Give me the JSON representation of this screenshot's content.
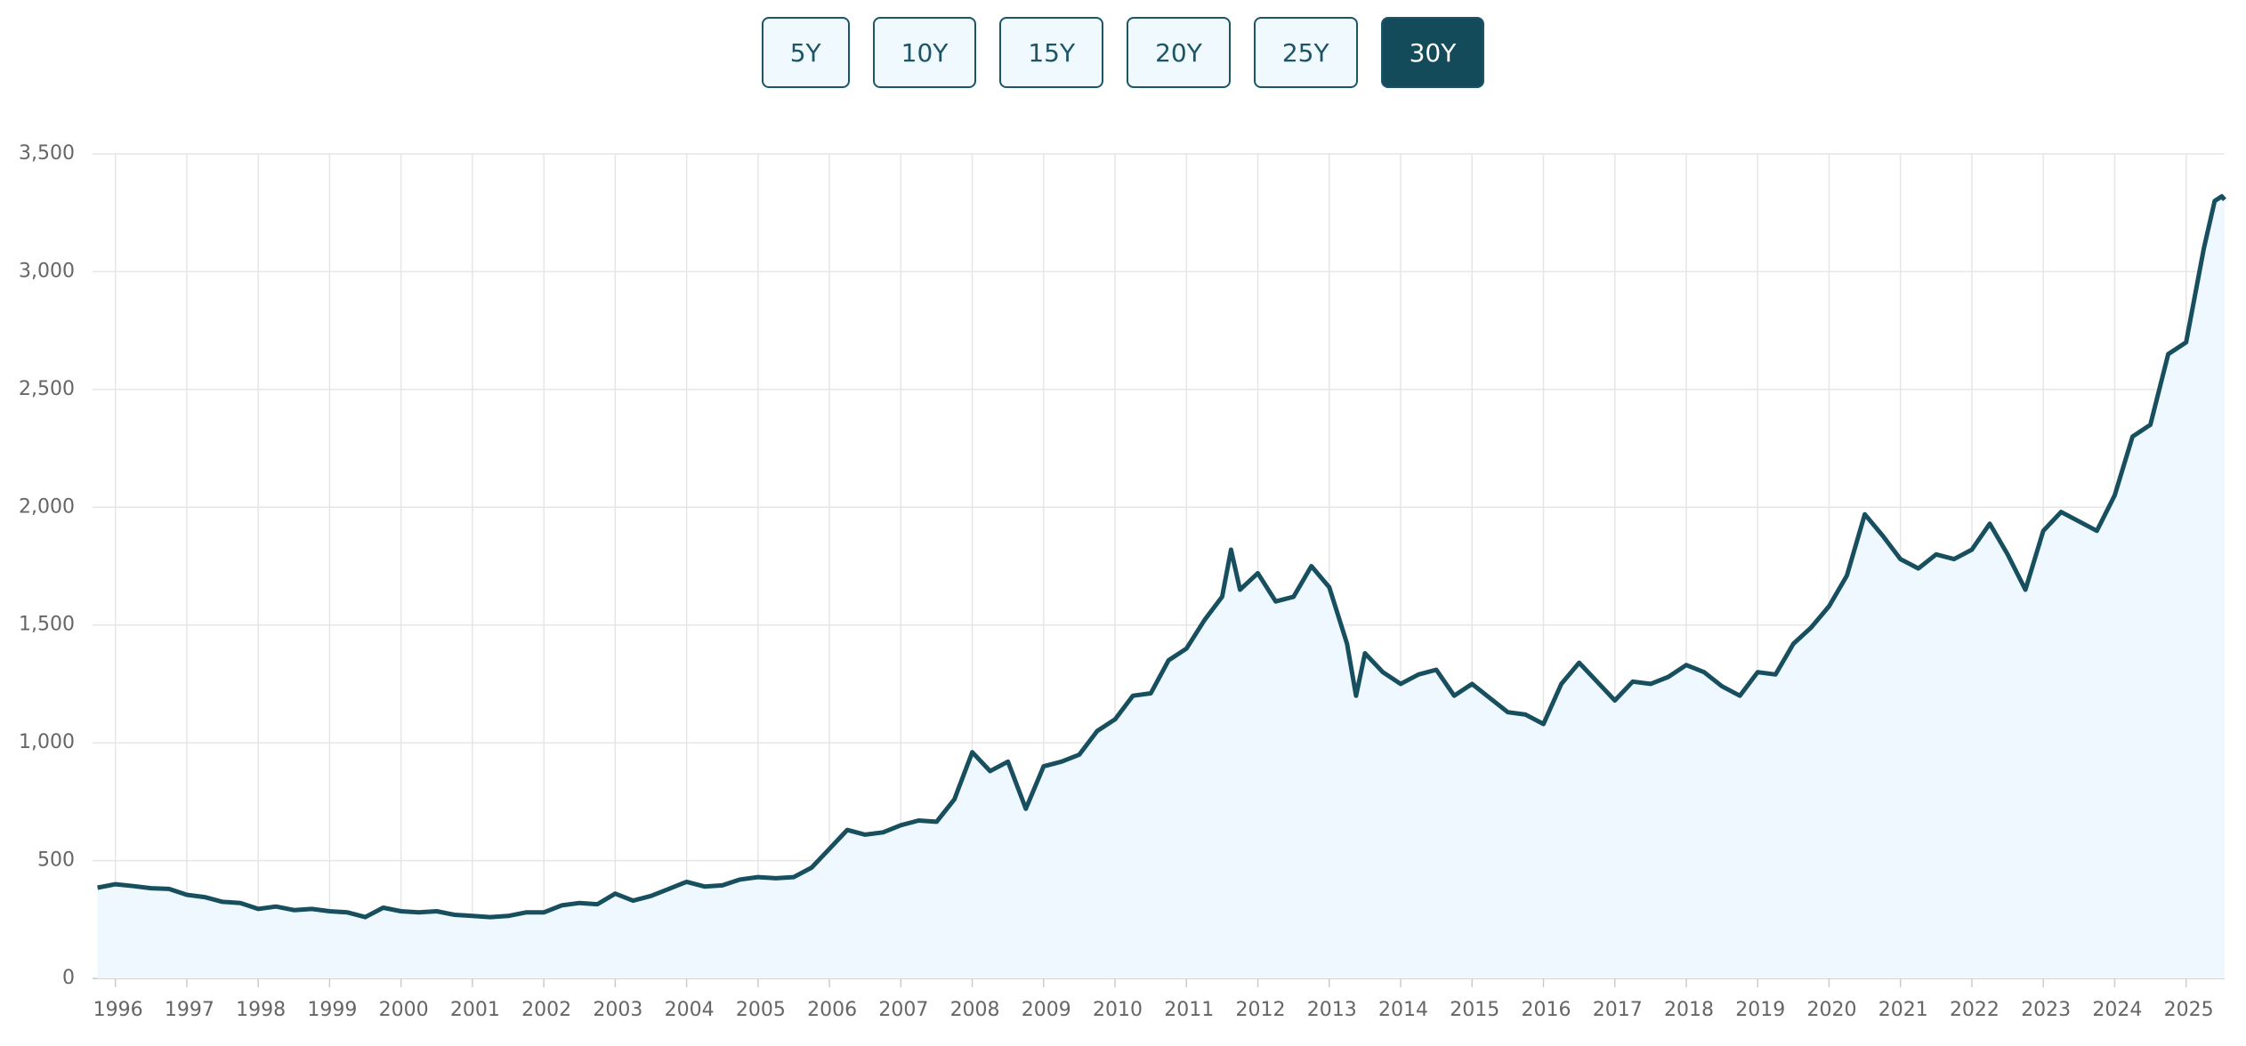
{
  "range_buttons": [
    "5Y",
    "10Y",
    "15Y",
    "20Y",
    "25Y",
    "30Y"
  ],
  "selected_range": "30Y",
  "chart_data": {
    "type": "area",
    "color": "#174f5f",
    "fill": "#eef8fe",
    "grid": true,
    "xlim": [
      1995.68,
      2025.54
    ],
    "xticks": [
      1996,
      1997,
      1998,
      1999,
      2000,
      2001,
      2002,
      2003,
      2004,
      2005,
      2006,
      2007,
      2008,
      2009,
      2010,
      2011,
      2012,
      2013,
      2014,
      2015,
      2016,
      2017,
      2018,
      2019,
      2020,
      2021,
      2022,
      2023,
      2024,
      2025
    ],
    "ylim": [
      0,
      3500
    ],
    "yticks": [
      0,
      500,
      {
        "value": 1000,
        "label": "1,000"
      },
      {
        "value": 1500,
        "label": "1,500"
      },
      {
        "value": 2000,
        "label": "2,000"
      },
      {
        "value": 2500,
        "label": "2,500"
      },
      {
        "value": 3000,
        "label": "3,000"
      },
      {
        "value": 3500,
        "label": "3,500"
      }
    ],
    "x": [
      1995.75,
      1996,
      1996.25,
      1996.5,
      1996.75,
      1997,
      1997.25,
      1997.5,
      1997.75,
      1998,
      1998.25,
      1998.5,
      1998.75,
      1999,
      1999.25,
      1999.5,
      1999.75,
      2000,
      2000.25,
      2000.5,
      2000.75,
      2001,
      2001.25,
      2001.5,
      2001.75,
      2002,
      2002.25,
      2002.5,
      2002.75,
      2003,
      2003.25,
      2003.5,
      2003.75,
      2004,
      2004.25,
      2004.5,
      2004.75,
      2005,
      2005.25,
      2005.5,
      2005.75,
      2006,
      2006.25,
      2006.5,
      2006.75,
      2007,
      2007.25,
      2007.5,
      2007.75,
      2008,
      2008.25,
      2008.5,
      2008.75,
      2009,
      2009.25,
      2009.5,
      2009.75,
      2010,
      2010.25,
      2010.5,
      2010.75,
      2011,
      2011.25,
      2011.5,
      2011.625,
      2011.75,
      2012,
      2012.25,
      2012.5,
      2012.75,
      2013,
      2013.25,
      2013.375,
      2013.5,
      2013.75,
      2014,
      2014.25,
      2014.5,
      2014.75,
      2015,
      2015.25,
      2015.5,
      2015.75,
      2016,
      2016.25,
      2016.5,
      2016.75,
      2017,
      2017.25,
      2017.5,
      2017.75,
      2018,
      2018.25,
      2018.5,
      2018.75,
      2019,
      2019.25,
      2019.5,
      2019.75,
      2020,
      2020.25,
      2020.5,
      2020.75,
      2021,
      2021.25,
      2021.5,
      2021.75,
      2022,
      2022.25,
      2022.5,
      2022.75,
      2023,
      2023.25,
      2023.5,
      2023.75,
      2024,
      2024.25,
      2024.5,
      2024.75,
      2025,
      2025.25,
      2025.4,
      2025.5,
      2025.54
    ],
    "values": [
      385,
      400,
      392,
      383,
      380,
      355,
      345,
      325,
      320,
      295,
      305,
      290,
      295,
      285,
      280,
      260,
      300,
      285,
      280,
      285,
      270,
      265,
      260,
      265,
      280,
      280,
      310,
      320,
      315,
      360,
      330,
      350,
      380,
      410,
      390,
      395,
      420,
      430,
      425,
      430,
      470,
      550,
      630,
      610,
      620,
      650,
      670,
      665,
      760,
      960,
      880,
      920,
      720,
      900,
      920,
      950,
      1050,
      1100,
      1200,
      1210,
      1350,
      1400,
      1520,
      1620,
      1820,
      1650,
      1720,
      1600,
      1620,
      1750,
      1660,
      1420,
      1200,
      1380,
      1300,
      1250,
      1290,
      1310,
      1200,
      1250,
      1190,
      1130,
      1120,
      1080,
      1250,
      1340,
      1260,
      1180,
      1260,
      1250,
      1280,
      1330,
      1300,
      1240,
      1200,
      1300,
      1290,
      1420,
      1490,
      1580,
      1710,
      1970,
      1880,
      1780,
      1740,
      1800,
      1780,
      1820,
      1930,
      1800,
      1650,
      1900,
      1980,
      1940,
      1900,
      2050,
      2300,
      2350,
      2650,
      2700,
      3100,
      3300,
      3320,
      3305
    ]
  }
}
